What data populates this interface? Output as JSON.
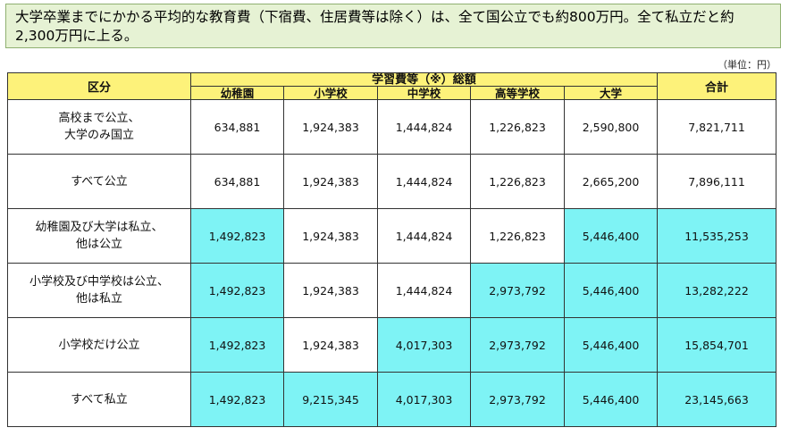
{
  "headline": "大学卒業までにかかる平均的な教育費（下宿費、住居費等は除く）は、全て国公立でも約800万円。全て私立だと約2,300万円に上る。",
  "unit_note": "（単位：円）",
  "table": {
    "header_category": "区分",
    "header_group": "学習費等（※）総額",
    "header_total": "合計",
    "columns": [
      "幼稚園",
      "小学校",
      "中学校",
      "高等学校",
      "大学"
    ],
    "rows": [
      {
        "label_lines": [
          "高校まで公立、",
          "大学のみ国立"
        ],
        "values": [
          "634,881",
          "1,924,383",
          "1,444,824",
          "1,226,823",
          "2,590,800"
        ],
        "total": "7,821,711",
        "private_flags": [
          false,
          false,
          false,
          false,
          false,
          false
        ]
      },
      {
        "label_lines": [
          "すべて公立"
        ],
        "values": [
          "634,881",
          "1,924,383",
          "1,444,824",
          "1,226,823",
          "2,665,200"
        ],
        "total": "7,896,111",
        "private_flags": [
          false,
          false,
          false,
          false,
          false,
          false
        ]
      },
      {
        "label_lines": [
          "幼稚園及び大学は私立、",
          "他は公立"
        ],
        "values": [
          "1,492,823",
          "1,924,383",
          "1,444,824",
          "1,226,823",
          "5,446,400"
        ],
        "total": "11,535,253",
        "private_flags": [
          true,
          false,
          false,
          false,
          true,
          true
        ]
      },
      {
        "label_lines": [
          "小学校及び中学校は公立、",
          "他は私立"
        ],
        "values": [
          "1,492,823",
          "1,924,383",
          "1,444,824",
          "2,973,792",
          "5,446,400"
        ],
        "total": "13,282,222",
        "private_flags": [
          true,
          false,
          false,
          true,
          true,
          true
        ]
      },
      {
        "label_lines": [
          "小学校だけ公立"
        ],
        "values": [
          "1,492,823",
          "1,924,383",
          "4,017,303",
          "2,973,792",
          "5,446,400"
        ],
        "total": "15,854,701",
        "private_flags": [
          true,
          false,
          true,
          true,
          true,
          true
        ]
      },
      {
        "label_lines": [
          "すべて私立"
        ],
        "values": [
          "1,492,823",
          "9,215,345",
          "4,017,303",
          "2,973,792",
          "5,446,400"
        ],
        "total": "23,145,663",
        "private_flags": [
          true,
          true,
          true,
          true,
          true,
          true
        ]
      }
    ]
  },
  "colors": {
    "header_yellow": "#fdf27a",
    "private_cyan": "#7ef3f5",
    "callout_green": "#e6f2d4"
  }
}
